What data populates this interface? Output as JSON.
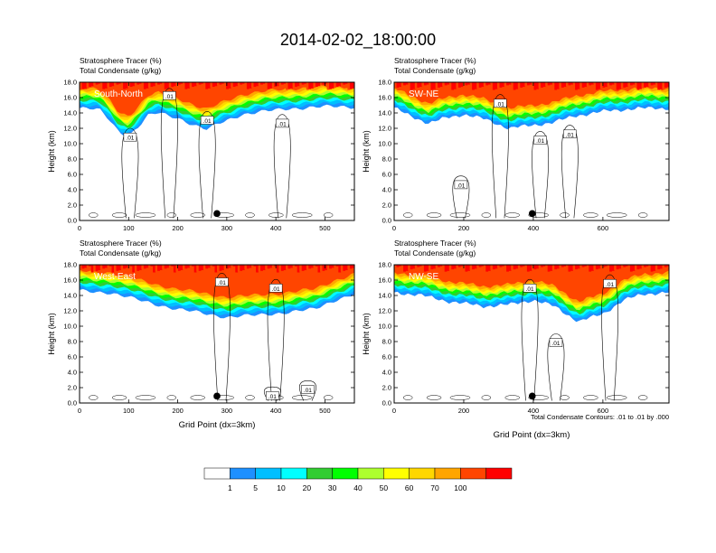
{
  "figure": {
    "title": "2014-02-02_18:00:00",
    "contour_note": "Total Condensate Contours: .01 to .01 by .000"
  },
  "chart_data": [
    {
      "type": "heatmap",
      "panel": "South-North",
      "label": "South-North",
      "title_line1": "Stratosphere Tracer   (%)",
      "title_line2": "Total Condensate   (g/kg)",
      "ylabel": "Height (km)",
      "xlabel": "",
      "xlim": [
        0,
        560
      ],
      "ylim": [
        0,
        18
      ],
      "xticks": [
        0,
        100,
        200,
        300,
        400,
        500
      ],
      "yticks": [
        0,
        2,
        4,
        6,
        8,
        10,
        12,
        14,
        16,
        18
      ],
      "tracer_base_km": [
        [
          0,
          14.6
        ],
        [
          40,
          14.4
        ],
        [
          60,
          13.2
        ],
        [
          80,
          11.6
        ],
        [
          100,
          11.0
        ],
        [
          120,
          12.2
        ],
        [
          140,
          13.6
        ],
        [
          160,
          14.0
        ],
        [
          200,
          13.4
        ],
        [
          240,
          12.2
        ],
        [
          260,
          11.8
        ],
        [
          290,
          12.8
        ],
        [
          330,
          13.8
        ],
        [
          380,
          14.2
        ],
        [
          430,
          14.6
        ],
        [
          500,
          14.8
        ],
        [
          560,
          14.8
        ]
      ],
      "contour_labels": [
        {
          "x": 103,
          "y": 10.8,
          "text": ".01"
        },
        {
          "x": 183,
          "y": 16.2,
          "text": ".01"
        },
        {
          "x": 260,
          "y": 13.0,
          "text": ".01"
        },
        {
          "x": 413,
          "y": 12.6,
          "text": ".01"
        }
      ],
      "marker": {
        "x": 280,
        "y": 0.9
      }
    },
    {
      "type": "heatmap",
      "panel": "SW-NE",
      "label": "SW-NE",
      "title_line1": "Stratosphere Tracer   (%)",
      "title_line2": "Total Condensate   (g/kg)",
      "ylabel": "Height (km)",
      "xlabel": "",
      "xlim": [
        0,
        790
      ],
      "ylim": [
        0,
        18
      ],
      "xticks": [
        0,
        200,
        400,
        600
      ],
      "yticks": [
        0,
        2,
        4,
        6,
        8,
        10,
        12,
        14,
        16,
        18
      ],
      "tracer_base_km": [
        [
          0,
          14.6
        ],
        [
          50,
          13.6
        ],
        [
          100,
          12.6
        ],
        [
          150,
          13.4
        ],
        [
          200,
          13.8
        ],
        [
          260,
          13.2
        ],
        [
          330,
          12.0
        ],
        [
          400,
          12.4
        ],
        [
          460,
          12.8
        ],
        [
          520,
          13.6
        ],
        [
          600,
          14.2
        ],
        [
          700,
          14.6
        ],
        [
          790,
          14.6
        ]
      ],
      "contour_labels": [
        {
          "x": 192,
          "y": 4.6,
          "text": ".01"
        },
        {
          "x": 305,
          "y": 15.2,
          "text": ".01"
        },
        {
          "x": 420,
          "y": 10.4,
          "text": ".01"
        },
        {
          "x": 505,
          "y": 11.2,
          "text": ".01"
        }
      ],
      "marker": {
        "x": 397,
        "y": 0.9
      }
    },
    {
      "type": "heatmap",
      "panel": "West-East",
      "label": "West-East",
      "title_line1": "Stratosphere Tracer   (%)",
      "title_line2": "Total Condensate   (g/kg)",
      "ylabel": "Height (km)",
      "xlabel": "Grid Point (dx=3km)",
      "xlim": [
        0,
        560
      ],
      "ylim": [
        0,
        18
      ],
      "xticks": [
        0,
        100,
        200,
        300,
        400,
        500
      ],
      "yticks": [
        0,
        2,
        4,
        6,
        8,
        10,
        12,
        14,
        16,
        18
      ],
      "tracer_base_km": [
        [
          0,
          14.6
        ],
        [
          60,
          14.4
        ],
        [
          120,
          13.4
        ],
        [
          200,
          12.2
        ],
        [
          260,
          11.6
        ],
        [
          300,
          11.2
        ],
        [
          360,
          11.4
        ],
        [
          420,
          11.8
        ],
        [
          480,
          12.2
        ],
        [
          520,
          13.4
        ],
        [
          560,
          14.2
        ]
      ],
      "contour_labels": [
        {
          "x": 290,
          "y": 15.7,
          "text": ".01"
        },
        {
          "x": 400,
          "y": 14.9,
          "text": ".01"
        },
        {
          "x": 393,
          "y": 0.9,
          "text": ".01"
        },
        {
          "x": 465,
          "y": 1.7,
          "text": ".01"
        }
      ],
      "marker": {
        "x": 280,
        "y": 0.9
      }
    },
    {
      "type": "heatmap",
      "panel": "NW-SE",
      "label": "NW-SE",
      "title_line1": "Stratosphere Tracer   (%)",
      "title_line2": "Total Condensate   (g/kg)",
      "ylabel": "Height (km)",
      "xlabel": "Grid Point (dx=3km)",
      "xlim": [
        0,
        790
      ],
      "ylim": [
        0,
        18
      ],
      "xticks": [
        0,
        200,
        400,
        600
      ],
      "yticks": [
        0,
        2,
        4,
        6,
        8,
        10,
        12,
        14,
        16,
        18
      ],
      "tracer_base_km": [
        [
          0,
          14.4
        ],
        [
          80,
          14.0
        ],
        [
          160,
          13.2
        ],
        [
          260,
          12.6
        ],
        [
          330,
          12.8
        ],
        [
          400,
          13.4
        ],
        [
          460,
          12.6
        ],
        [
          530,
          10.6
        ],
        [
          600,
          11.6
        ],
        [
          660,
          13.4
        ],
        [
          720,
          14.2
        ],
        [
          790,
          14.4
        ]
      ],
      "contour_labels": [
        {
          "x": 390,
          "y": 14.9,
          "text": ".01"
        },
        {
          "x": 465,
          "y": 7.8,
          "text": ".01"
        },
        {
          "x": 620,
          "y": 15.5,
          "text": ".01"
        }
      ],
      "marker": {
        "x": 397,
        "y": 0.9
      }
    }
  ],
  "colorbar": {
    "boundaries": [
      "1",
      "5",
      "10",
      "20",
      "30",
      "40",
      "50",
      "60",
      "70",
      "100"
    ],
    "colors": [
      "#ffffff",
      "#1e90ff",
      "#00bfff",
      "#00ffff",
      "#32cd32",
      "#00ff00",
      "#adff2f",
      "#ffff00",
      "#ffd700",
      "#ffa500",
      "#ff4500",
      "#ff0000"
    ]
  }
}
